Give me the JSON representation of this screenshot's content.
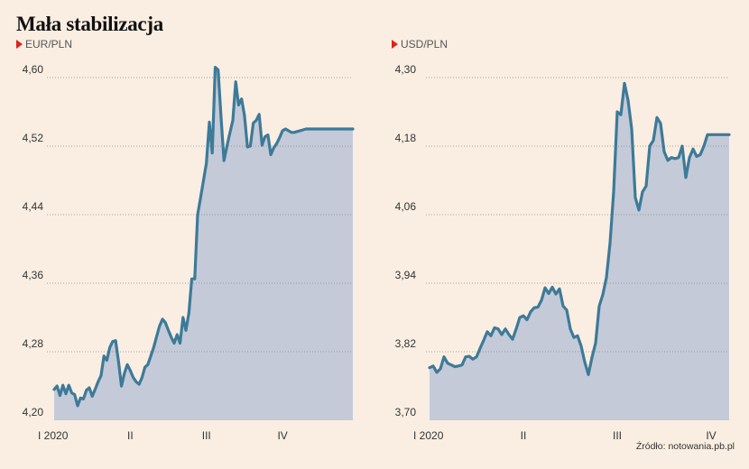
{
  "title": "Mała stabilizacja",
  "source": "Źródło: notowania.pb.pl",
  "colors": {
    "background": "#faeee2",
    "line": "#3d7a98",
    "area": "#c4cad8",
    "marker": "#d9241c"
  },
  "chart_data": [
    {
      "type": "area",
      "series_label": "EUR/PLN",
      "ylim": [
        4.2,
        4.6
      ],
      "yticks": [
        "4,20",
        "4,28",
        "4,36",
        "4,44",
        "4,52",
        "4,60"
      ],
      "ytick_values": [
        4.2,
        4.28,
        4.36,
        4.44,
        4.52,
        4.6
      ],
      "xtick_labels": [
        "I 2020",
        "II",
        "III",
        "IV"
      ],
      "xtick_positions": [
        0,
        26,
        52,
        78
      ],
      "grid": true,
      "x": [
        0,
        1,
        2,
        3,
        4,
        5,
        6,
        7,
        8,
        9,
        10,
        11,
        12,
        13,
        14,
        15,
        16,
        17,
        18,
        19,
        20,
        21,
        22,
        23,
        24,
        25,
        26,
        27,
        28,
        29,
        30,
        31,
        32,
        33,
        34,
        35,
        36,
        37,
        38,
        39,
        40,
        41,
        42,
        43,
        44,
        45,
        46,
        47,
        48,
        49,
        50,
        51,
        52,
        53,
        54,
        55,
        56,
        57,
        58,
        59,
        60,
        61,
        62,
        63,
        64,
        65,
        66,
        67,
        68,
        69,
        70,
        71,
        72,
        73,
        74,
        75,
        76,
        77,
        78,
        79,
        80,
        81,
        82,
        83,
        84,
        85,
        86,
        87,
        88,
        89,
        90,
        91,
        92,
        93,
        94,
        95,
        96,
        97,
        98,
        99,
        100,
        101,
        102
      ],
      "values": [
        4.236,
        4.24,
        4.229,
        4.241,
        4.231,
        4.241,
        4.232,
        4.23,
        4.217,
        4.226,
        4.225,
        4.235,
        4.238,
        4.228,
        4.236,
        4.245,
        4.252,
        4.275,
        4.27,
        4.285,
        4.292,
        4.293,
        4.268,
        4.24,
        4.255,
        4.265,
        4.258,
        4.25,
        4.245,
        4.242,
        4.25,
        4.262,
        4.265,
        4.275,
        4.285,
        4.298,
        4.31,
        4.318,
        4.314,
        4.305,
        4.297,
        4.29,
        4.3,
        4.29,
        4.32,
        4.305,
        4.325,
        4.365,
        4.365,
        4.44,
        4.46,
        4.48,
        4.5,
        4.548,
        4.512,
        4.612,
        4.609,
        4.553,
        4.503,
        4.52,
        4.535,
        4.55,
        4.595,
        4.568,
        4.575,
        4.556,
        4.519,
        4.52,
        4.547,
        4.55,
        4.557,
        4.521,
        4.531,
        4.533,
        4.51,
        4.518,
        4.523,
        4.53,
        4.538,
        4.54,
        4.538,
        4.536,
        4.536,
        4.537,
        4.538,
        4.539,
        4.54,
        4.54,
        4.54,
        4.54,
        4.54,
        4.54,
        4.54,
        4.54,
        4.54,
        4.54,
        4.54,
        4.54,
        4.54,
        4.54,
        4.54,
        4.54,
        4.54
      ]
    },
    {
      "type": "area",
      "series_label": "USD/PLN",
      "ylim": [
        3.7,
        4.3
      ],
      "yticks": [
        "3,70",
        "3,82",
        "3,94",
        "4,06",
        "4,18",
        "4,30"
      ],
      "ytick_values": [
        3.7,
        3.82,
        3.94,
        4.06,
        4.18,
        4.3
      ],
      "xtick_labels": [
        "I 2020",
        "II",
        "III",
        "IV"
      ],
      "xtick_positions": [
        0,
        26,
        52,
        78
      ],
      "grid": true,
      "x": [
        0,
        1,
        2,
        3,
        4,
        5,
        6,
        7,
        8,
        9,
        10,
        11,
        12,
        13,
        14,
        15,
        16,
        17,
        18,
        19,
        20,
        21,
        22,
        23,
        24,
        25,
        26,
        27,
        28,
        29,
        30,
        31,
        32,
        33,
        34,
        35,
        36,
        37,
        38,
        39,
        40,
        41,
        42,
        43,
        44,
        45,
        46,
        47,
        48,
        49,
        50,
        51,
        52,
        53,
        54,
        55,
        56,
        57,
        58,
        59,
        60,
        61,
        62,
        63,
        64,
        65,
        66,
        67,
        68,
        69,
        70,
        71,
        72,
        73,
        74,
        75,
        76,
        77,
        78,
        79,
        80,
        81,
        82,
        83
      ],
      "values": [
        3.792,
        3.795,
        3.784,
        3.79,
        3.811,
        3.8,
        3.797,
        3.794,
        3.795,
        3.797,
        3.811,
        3.812,
        3.807,
        3.811,
        3.826,
        3.84,
        3.855,
        3.848,
        3.862,
        3.86,
        3.85,
        3.86,
        3.85,
        3.842,
        3.86,
        3.88,
        3.883,
        3.876,
        3.89,
        3.897,
        3.898,
        3.91,
        3.932,
        3.922,
        3.933,
        3.921,
        3.93,
        3.9,
        3.893,
        3.86,
        3.845,
        3.848,
        3.83,
        3.802,
        3.78,
        3.81,
        3.835,
        3.9,
        3.92,
        3.95,
        4.01,
        4.1,
        4.24,
        4.235,
        4.29,
        4.26,
        4.21,
        4.09,
        4.068,
        4.1,
        4.11,
        4.18,
        4.19,
        4.23,
        4.22,
        4.17,
        4.155,
        4.16,
        4.158,
        4.16,
        4.18,
        4.125,
        4.16,
        4.175,
        4.162,
        4.165,
        4.18,
        4.2,
        4.2,
        4.2,
        4.2,
        4.2,
        4.2,
        4.2
      ]
    }
  ]
}
